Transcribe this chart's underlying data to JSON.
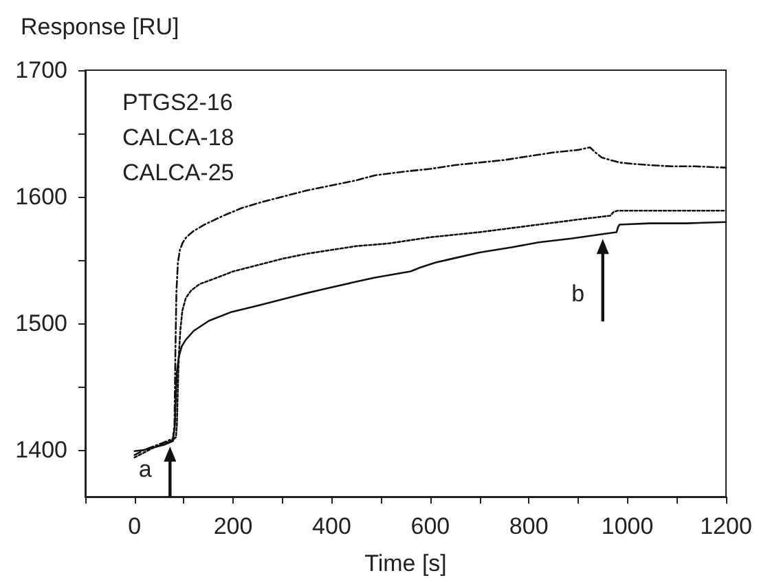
{
  "chart_data": {
    "type": "line",
    "xlabel": "Time [s]",
    "ylabel": "Response [RU]",
    "xlim": [
      -100,
      1200
    ],
    "xticks": [
      {
        "value": -100,
        "label": null
      },
      0,
      {
        "value": 100,
        "label": null
      },
      200,
      {
        "value": 300,
        "label": null
      },
      400,
      {
        "value": 500,
        "label": null
      },
      600,
      {
        "value": 700,
        "label": null
      },
      800,
      {
        "value": 900,
        "label": null
      },
      1000,
      {
        "value": 1100,
        "label": null
      },
      1200
    ],
    "ylim": [
      1363,
      1700
    ],
    "yticks": [
      1400,
      {
        "value": 1450,
        "label": null
      },
      1500,
      {
        "value": 1550,
        "label": null
      },
      1600,
      {
        "value": 1650,
        "label": null
      },
      1700
    ],
    "annotations": [
      "PTGS2-16",
      "CALCA-18",
      "CALCA-25",
      {
        "text": "a",
        "x": 72,
        "y": 1406
      },
      {
        "text": "b",
        "x": 950,
        "y": 1570
      }
    ],
    "series": [
      {
        "color": "#111111",
        "line_style": "dashed",
        "x": [
          0,
          20,
          40,
          60,
          78,
          81,
          83,
          85,
          88,
          92,
          98,
          105,
          120,
          142,
          180,
          217,
          260,
          300,
          350,
          400,
          450,
          489,
          550,
          600,
          650,
          700,
          750,
          800,
          850,
          900,
          924,
          935,
          948,
          965,
          985,
          1010,
          1045,
          1090,
          1137,
          1200
        ],
        "values": [
          1396,
          1400,
          1403,
          1406,
          1409,
          1420,
          1480,
          1525,
          1548,
          1558,
          1564,
          1568,
          1573,
          1578,
          1585,
          1591,
          1596,
          1600,
          1605,
          1609,
          1613,
          1617,
          1620,
          1622,
          1625,
          1627,
          1629,
          1632,
          1635,
          1637,
          1639,
          1635,
          1631,
          1629,
          1627,
          1626,
          1625,
          1624,
          1624,
          1623
        ]
      },
      {
        "color": "#111111",
        "line_style": "dotted",
        "x": [
          0,
          20,
          40,
          60,
          78,
          84,
          86,
          88,
          90,
          93,
          97,
          104,
          115,
          132,
          160,
          200,
          250,
          300,
          350,
          400,
          450,
          514,
          600,
          700,
          800,
          900,
          965,
          972,
          980,
          1050,
          1120,
          1198
        ],
        "values": [
          1394,
          1398,
          1402,
          1405,
          1408,
          1410,
          1420,
          1450,
          1475,
          1495,
          1510,
          1520,
          1526,
          1531,
          1535,
          1541,
          1546,
          1551,
          1555,
          1558,
          1561,
          1563,
          1568,
          1572,
          1577,
          1582,
          1585,
          1588,
          1589,
          1589,
          1589,
          1589
        ]
      },
      {
        "color": "#111111",
        "line_style": "solid",
        "x": [
          0,
          20,
          40,
          60,
          78,
          82,
          84,
          86,
          90,
          96,
          104,
          120,
          151,
          197,
          250,
          291,
          340,
          384,
          440,
          486,
          530,
          560,
          579,
          610,
          644,
          700,
          765,
          820,
          886,
          940,
          978,
          981,
          984,
          1045,
          1120,
          1200
        ],
        "values": [
          1399,
          1400,
          1402,
          1404,
          1407,
          1420,
          1445,
          1462,
          1474,
          1482,
          1487,
          1494,
          1502,
          1509,
          1514,
          1518,
          1523,
          1527,
          1532,
          1536,
          1539,
          1541,
          1544,
          1548,
          1551,
          1556,
          1560,
          1564,
          1567,
          1570,
          1572,
          1576,
          1578,
          1579,
          1579,
          1580
        ]
      }
    ]
  }
}
